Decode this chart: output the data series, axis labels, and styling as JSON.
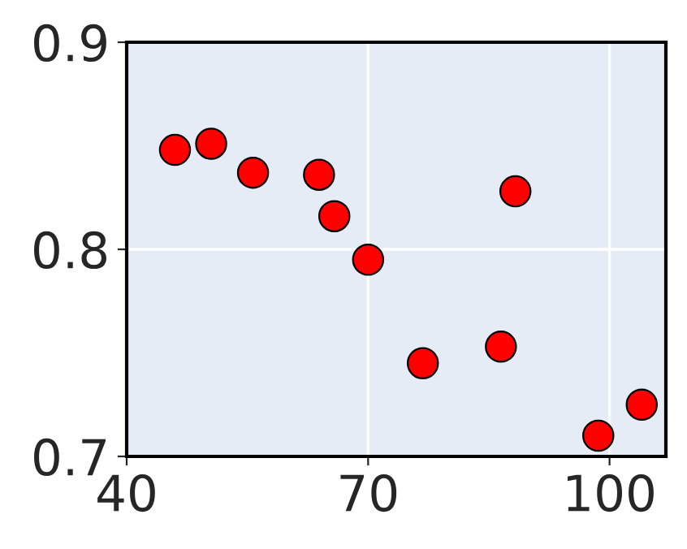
{
  "chart_data": {
    "type": "scatter",
    "x": [
      46.0,
      50.5,
      55.7,
      63.9,
      65.8,
      70.0,
      76.8,
      88.3,
      86.5,
      98.6,
      104.0
    ],
    "series": [
      {
        "color": "#ff0000",
        "values": [
          0.848,
          0.851,
          0.837,
          0.836,
          0.816,
          0.795,
          0.745,
          0.828,
          0.753,
          0.71,
          0.725
        ]
      }
    ],
    "xlim": [
      40,
      107
    ],
    "ylim": [
      0.7,
      0.9
    ],
    "xticks": [
      40,
      70,
      100
    ],
    "yticks": [
      0.7,
      0.8,
      0.9
    ],
    "grid": true,
    "marker": "circle"
  }
}
